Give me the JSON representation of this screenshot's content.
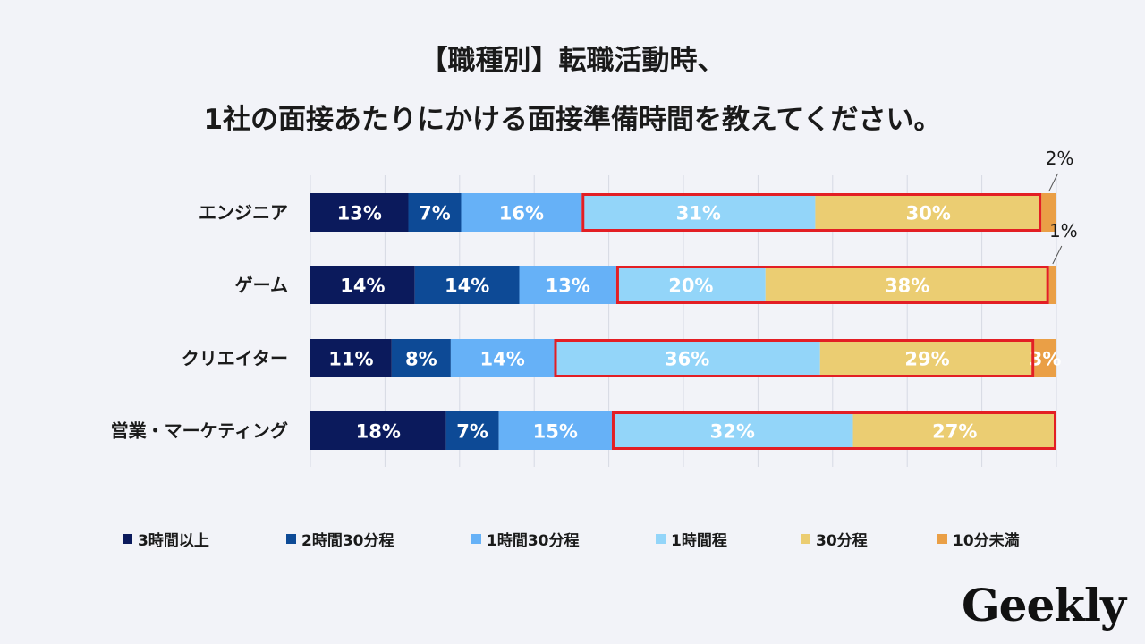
{
  "title": {
    "line1": "【職種別】転職活動時、",
    "line2": "1社の面接あたりにかける面接準備時間を教えてください。"
  },
  "chart_data": {
    "type": "bar",
    "orientation": "horizontal",
    "stacked": "percent",
    "categories": [
      "エンジニア",
      "ゲーム",
      "クリエイター",
      "営業・マーケティング"
    ],
    "series": [
      {
        "name": "3時間以上",
        "color": "#0b1a5c",
        "values": [
          13,
          14,
          11,
          18
        ]
      },
      {
        "name": "2時間30分程",
        "color": "#0d4a96",
        "values": [
          7,
          14,
          8,
          7
        ]
      },
      {
        "name": "1時間30分程",
        "color": "#66b1f7",
        "values": [
          16,
          13,
          14,
          15
        ]
      },
      {
        "name": "1時間程",
        "color": "#93d5f9",
        "values": [
          31,
          20,
          36,
          32
        ]
      },
      {
        "name": "30分程",
        "color": "#ebcd72",
        "values": [
          30,
          38,
          29,
          27
        ]
      },
      {
        "name": "10分未満",
        "color": "#ea9f46",
        "values": [
          2,
          1,
          3,
          0
        ]
      }
    ],
    "value_labels": [
      [
        "13%",
        "7%",
        "16%",
        "31%",
        "30%",
        "2%"
      ],
      [
        "14%",
        "14%",
        "13%",
        "20%",
        "38%",
        "1%"
      ],
      [
        "11%",
        "8%",
        "14%",
        "36%",
        "29%",
        "3%"
      ],
      [
        "18%",
        "7%",
        "15%",
        "32%",
        "27%",
        ""
      ]
    ],
    "xlim": [
      0,
      100
    ],
    "gridlines": true,
    "highlight": {
      "series": [
        "1時間程",
        "30分程"
      ],
      "color": "#e31e24"
    },
    "legend_position": "bottom"
  },
  "logo": {
    "text": "Geekly"
  }
}
